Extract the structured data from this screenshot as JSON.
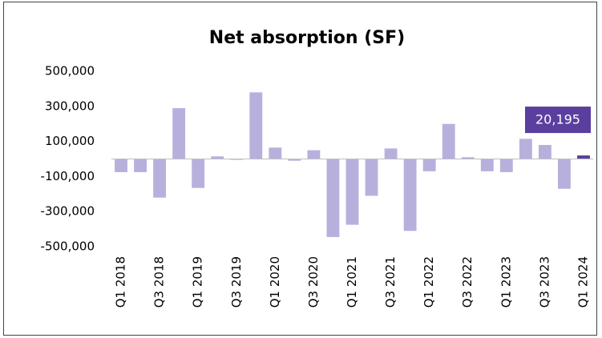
{
  "chart_data": {
    "type": "bar",
    "title": "Net absorption (SF)",
    "categories": [
      "Q1 2018",
      null,
      "Q3 2018",
      null,
      "Q1 2019",
      null,
      "Q3 2019",
      null,
      "Q1 2020",
      null,
      "Q3 2020",
      null,
      "Q1 2021",
      null,
      "Q3 2021",
      null,
      "Q1 2022",
      null,
      "Q3 2022",
      null,
      "Q1 2023",
      null,
      "Q3 2023",
      null,
      "Q1 2024"
    ],
    "values": [
      -75000,
      -75000,
      -220000,
      290000,
      -165000,
      15000,
      -5000,
      380000,
      65000,
      -10000,
      50000,
      -445000,
      -375000,
      -210000,
      60000,
      -410000,
      -70000,
      200000,
      10000,
      -70000,
      -75000,
      115000,
      80000,
      -170000,
      20195
    ],
    "value_labels": [
      null,
      null,
      null,
      null,
      null,
      null,
      null,
      null,
      null,
      null,
      null,
      null,
      null,
      null,
      null,
      null,
      null,
      null,
      null,
      null,
      null,
      null,
      null,
      null,
      "20,195"
    ],
    "colors": [
      "#b8b0dc",
      "#b8b0dc",
      "#b8b0dc",
      "#b8b0dc",
      "#b8b0dc",
      "#b8b0dc",
      "#b8b0dc",
      "#b8b0dc",
      "#b8b0dc",
      "#b8b0dc",
      "#b8b0dc",
      "#b8b0dc",
      "#b8b0dc",
      "#b8b0dc",
      "#b8b0dc",
      "#b8b0dc",
      "#b8b0dc",
      "#b8b0dc",
      "#b8b0dc",
      "#b8b0dc",
      "#b8b0dc",
      "#b8b0dc",
      "#b8b0dc",
      "#b8b0dc",
      "#5b3f9e"
    ],
    "ylim": [
      -500000,
      500000
    ],
    "yticks": [
      {
        "value": 500000,
        "label": "500,000"
      },
      {
        "value": 300000,
        "label": "300,000"
      },
      {
        "value": 100000,
        "label": "100,000"
      },
      {
        "value": -100000,
        "label": "-100,000"
      },
      {
        "value": -300000,
        "label": "-300,000"
      },
      {
        "value": -500000,
        "label": "-500,000"
      }
    ],
    "grid": false
  }
}
